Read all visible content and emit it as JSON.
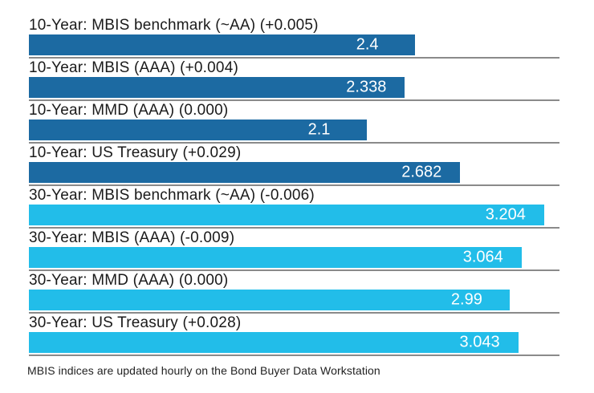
{
  "chart_data": {
    "type": "bar",
    "orientation": "horizontal",
    "title": "",
    "xlabel": "",
    "ylabel": "",
    "xlim": [
      0,
      3.3
    ],
    "grid": "separator line under each bar",
    "legend": "none",
    "series_colors": {
      "10-year": "#1c6aa2",
      "30-year": "#22bde9"
    },
    "rows": [
      {
        "label": "10-Year: MBIS benchmark (~AA) (+0.005)",
        "value": 2.4,
        "value_label": "2.4",
        "series": "10-year"
      },
      {
        "label": "10-Year: MBIS (AAA) (+0.004)",
        "value": 2.338,
        "value_label": "2.338",
        "series": "10-year"
      },
      {
        "label": "10-Year: MMD (AAA) (0.000)",
        "value": 2.1,
        "value_label": "2.1",
        "series": "10-year"
      },
      {
        "label": "10-Year: US Treasury (+0.029)",
        "value": 2.682,
        "value_label": "2.682",
        "series": "10-year"
      },
      {
        "label": "30-Year: MBIS benchmark (~AA) (-0.006)",
        "value": 3.204,
        "value_label": "3.204",
        "series": "30-year"
      },
      {
        "label": "30-Year: MBIS (AAA) (-0.009)",
        "value": 3.064,
        "value_label": "3.064",
        "series": "30-year"
      },
      {
        "label": "30-Year: MMD (AAA) (0.000)",
        "value": 2.99,
        "value_label": "2.99",
        "series": "30-year"
      },
      {
        "label": "30-Year: US Treasury (+0.028)",
        "value": 3.043,
        "value_label": "3.043",
        "series": "30-year"
      }
    ],
    "footnote": "MBIS indices are updated hourly on the Bond Buyer Data Workstation"
  },
  "colors": {
    "background": "#ffffff",
    "separator_line": "#8a8a8a",
    "label_text": "#1a1a1a",
    "value_text": "#ffffff",
    "footnote_text": "#222222"
  }
}
